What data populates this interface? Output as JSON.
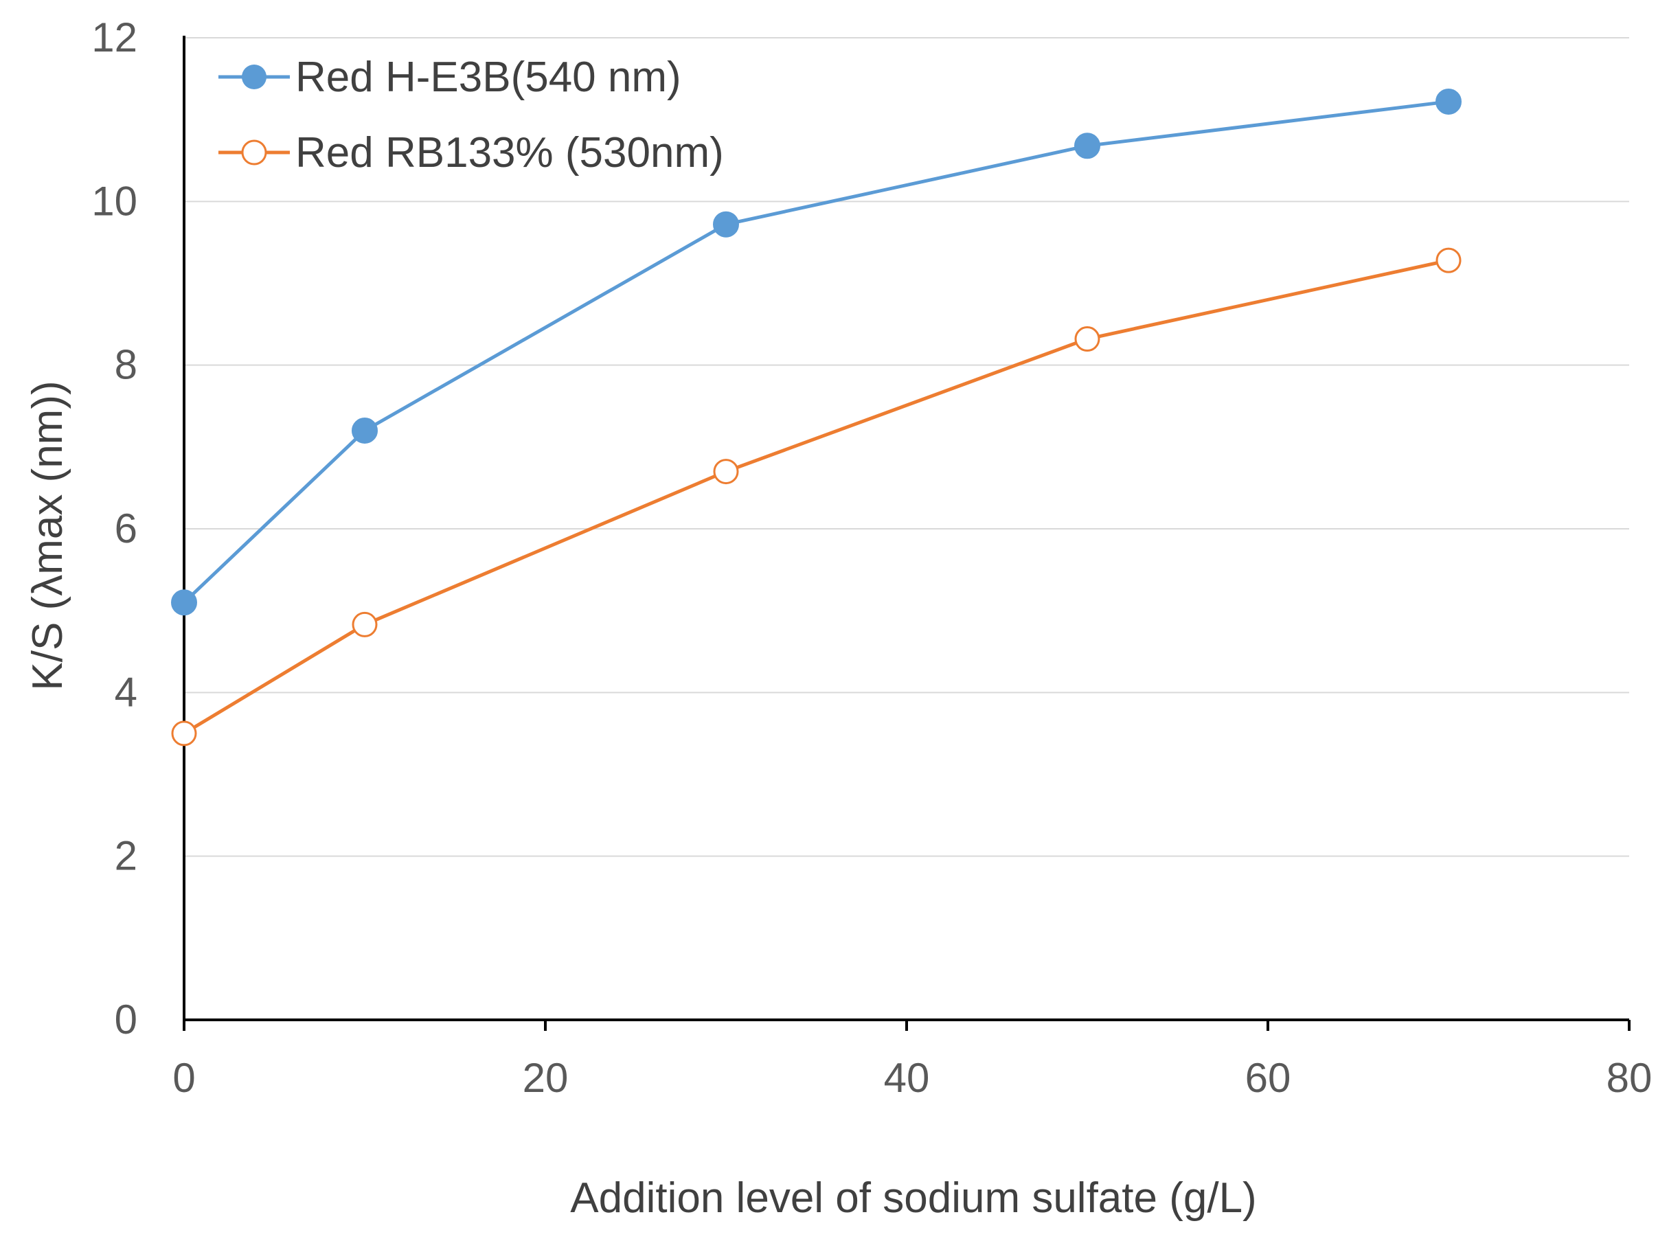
{
  "chart_data": {
    "type": "line",
    "title": "",
    "xlabel": "Addition level of sodium sulfate (g/L)",
    "ylabel": "K/S (λmax (nm))",
    "xlim": [
      0,
      80
    ],
    "ylim": [
      0,
      12
    ],
    "x_ticks": [
      "0",
      "20",
      "40",
      "60",
      "80"
    ],
    "y_ticks": [
      "0",
      "2",
      "4",
      "6",
      "8",
      "10",
      "12"
    ],
    "grid": "horizontal",
    "legend_position": "top-left",
    "series": [
      {
        "name": "Red H-E3B(540 nm)",
        "color": "#5B9BD5",
        "marker": "filled-circle",
        "x": [
          0,
          10,
          30,
          50,
          70
        ],
        "y": [
          5.1,
          7.2,
          9.72,
          10.68,
          11.22
        ]
      },
      {
        "name": "Red RB133% (530nm)",
        "color": "#ED7D31",
        "marker": "open-circle",
        "x": [
          0,
          10,
          30,
          50,
          70
        ],
        "y": [
          3.5,
          4.83,
          6.7,
          8.32,
          9.28
        ]
      }
    ]
  }
}
